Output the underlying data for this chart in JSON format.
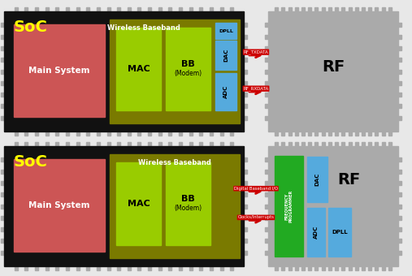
{
  "fig_width": 5.07,
  "fig_height": 3.4,
  "dpi": 100,
  "bg_color": "#e8e8e8",
  "chip_pin_color": "#aaaaaa",
  "soc_bg_color": "#111111",
  "soc_label_color": "#ffff00",
  "wireless_bb_color": "#7a7a00",
  "main_system_color": "#cc5555",
  "mac_color": "#99cc00",
  "bb_modem_color": "#99cc00",
  "dac_color": "#55aadd",
  "adc_color": "#55aadd",
  "dpll_color": "#55aadd",
  "rf_body_color": "#aaaaaa",
  "green_block_color": "#22aa22",
  "arrow_color": "#cc0000",
  "top_arrow1_text": "RF_TXDATA",
  "top_arrow2_text": "RF_RXDATA",
  "bot_arrow1_text": "Digital Baseband I/O",
  "bot_arrow2_text": "Clocks/Interrupts"
}
